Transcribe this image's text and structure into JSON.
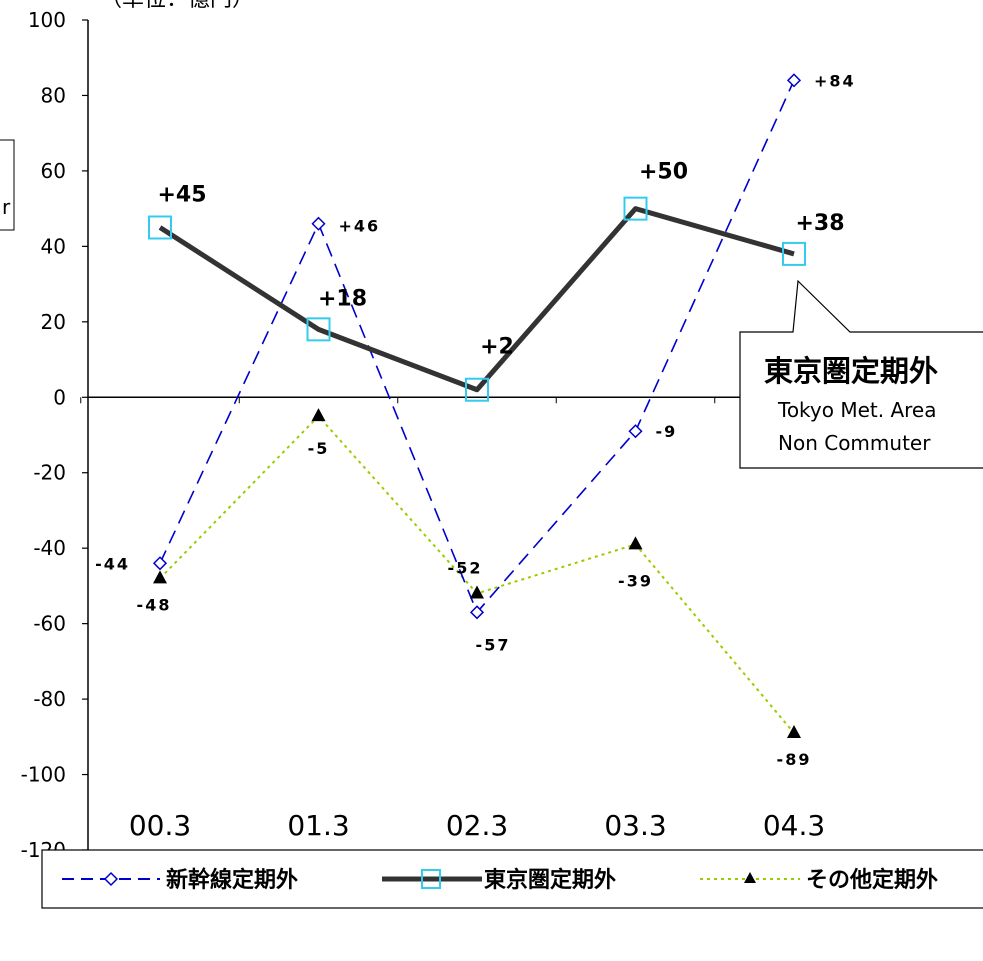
{
  "chart_data": {
    "type": "line",
    "title": "",
    "top_fragment": "（単位：億円）",
    "left_fragment": "r",
    "xlabel": "",
    "ylabel": "",
    "categories": [
      "00.3",
      "01.3",
      "02.3",
      "03.3",
      "04.3"
    ],
    "ylim": [
      -120,
      100
    ],
    "yticks": [
      100,
      80,
      60,
      40,
      20,
      0,
      -20,
      -40,
      -60,
      -80,
      -100,
      -120
    ],
    "grid": false,
    "legend_position": "bottom",
    "series": [
      {
        "name": "新幹線定期外",
        "values": [
          -44,
          46,
          -57,
          -9,
          84
        ],
        "labels": [
          "-44",
          "+46",
          "-57",
          "-9",
          "+84"
        ],
        "color": "#0000cc",
        "style": "dashed",
        "marker": "diamond-open"
      },
      {
        "name": "東京圏定期外",
        "values": [
          45,
          18,
          2,
          50,
          38
        ],
        "labels": [
          "+45",
          "+18",
          "+2",
          "+50",
          "+38"
        ],
        "color": "#333333",
        "style": "solid-thick",
        "marker": "square-open",
        "marker_color": "#33ccee"
      },
      {
        "name": "その他定期外",
        "values": [
          -48,
          -5,
          -52,
          -39,
          -89
        ],
        "labels": [
          "-48",
          "-5",
          "-52",
          "-39",
          "-89"
        ],
        "color": "#99cc00",
        "style": "dotted",
        "marker": "triangle-filled",
        "marker_color": "#000000"
      }
    ],
    "callout": {
      "title": "東京圏定期外",
      "line1": "Tokyo Met. Area",
      "line2": "Non  Commuter"
    }
  }
}
